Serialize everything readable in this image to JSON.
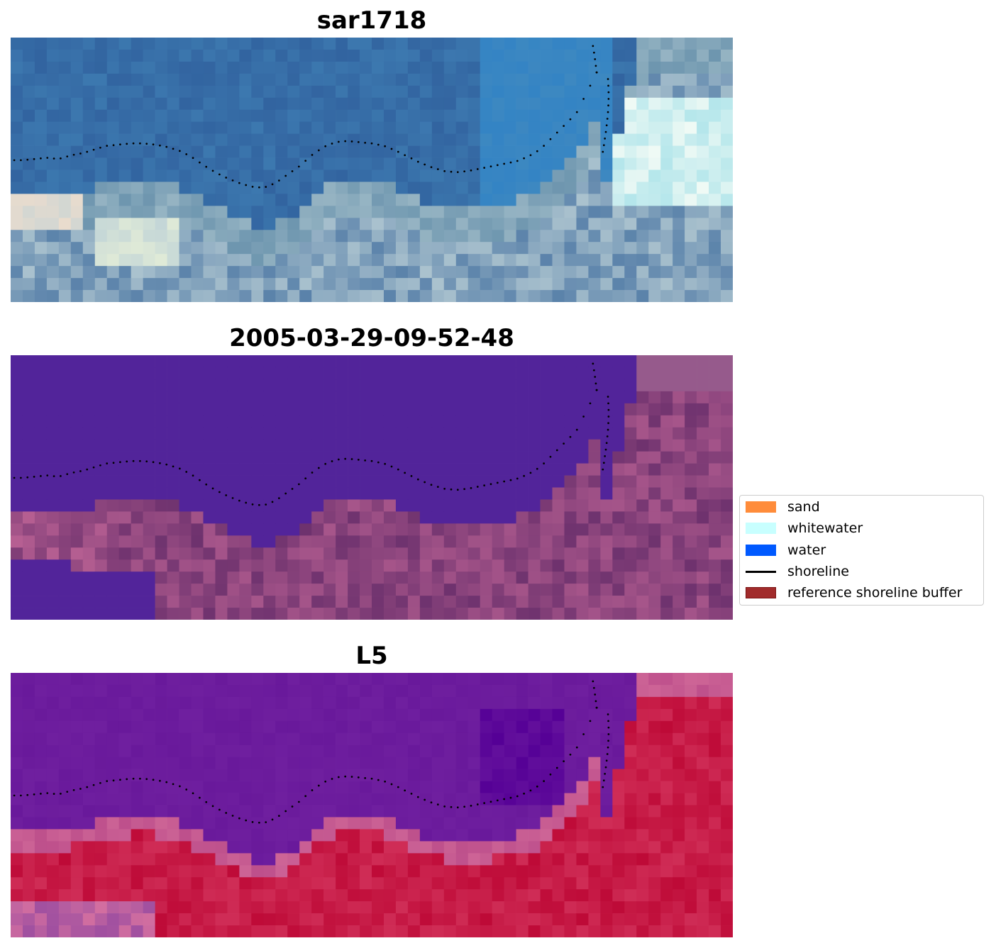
{
  "panels": [
    {
      "id": "rgb",
      "title": "sar1718",
      "palette": "rgb"
    },
    {
      "id": "classified",
      "title": "2005-03-29-09-52-48",
      "palette": "classified"
    },
    {
      "id": "ndwi",
      "title": "L5",
      "palette": "ndwi"
    }
  ],
  "legend": {
    "items": [
      {
        "label": "sand",
        "kind": "patch",
        "color": "#FF8C3A",
        "edge": "#FF8C3A"
      },
      {
        "label": "whitewater",
        "kind": "patch",
        "color": "#C8FFFF",
        "edge": "#C8FFFF"
      },
      {
        "label": "water",
        "kind": "patch",
        "color": "#0059FF",
        "edge": "#0059FF"
      },
      {
        "label": "shoreline",
        "kind": "line",
        "color": "#000000"
      },
      {
        "label": "reference shoreline buffer",
        "kind": "patch",
        "color": "#A12B2B",
        "edge": "#7A1414"
      }
    ]
  },
  "colors": {
    "water_class": "#52249A",
    "shoreline_marker": "#000000"
  }
}
